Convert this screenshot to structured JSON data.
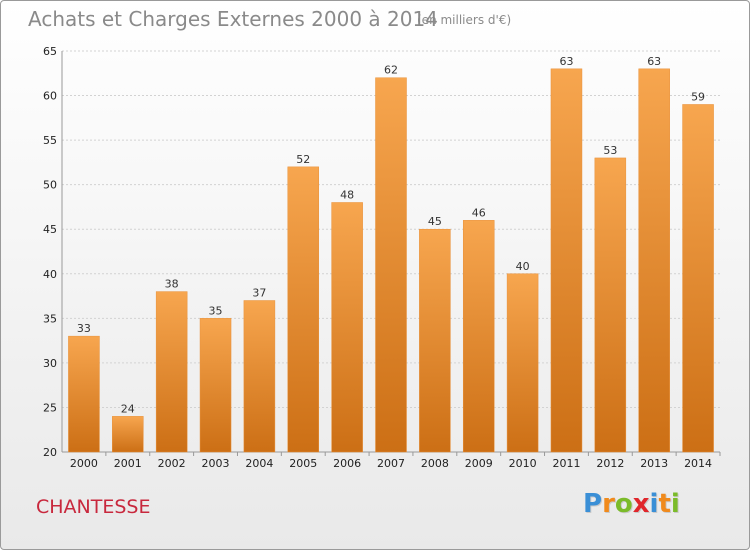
{
  "header": {
    "title": "Achats et Charges Externes 2000 à 2014",
    "subtitle": "(en milliers d'€)"
  },
  "footer": {
    "commune": "CHANTESSE",
    "logo_text": "Proxiti",
    "logo_letters": [
      {
        "char": "P",
        "color": "#3a8fd6"
      },
      {
        "char": "r",
        "color": "#f08a1c"
      },
      {
        "char": "o",
        "color": "#7bbb2a"
      },
      {
        "char": "x",
        "color": "#e0262b"
      },
      {
        "char": "i",
        "color": "#3a8fd6"
      },
      {
        "char": "t",
        "color": "#f08a1c"
      },
      {
        "char": "i",
        "color": "#7bbb2a"
      }
    ]
  },
  "colors": {
    "bar_top": "#f7a64f",
    "bar_bottom": "#cc6f15",
    "title": "#8a8a8a",
    "commune": "#c8283d"
  },
  "chart_data": {
    "type": "bar",
    "title": "Achats et Charges Externes 2000 à 2014",
    "subtitle": "(en milliers d'€)",
    "xlabel": "",
    "ylabel": "",
    "categories": [
      "2000",
      "2001",
      "2002",
      "2003",
      "2004",
      "2005",
      "2006",
      "2007",
      "2008",
      "2009",
      "2010",
      "2011",
      "2012",
      "2013",
      "2014"
    ],
    "values": [
      33,
      24,
      38,
      35,
      37,
      52,
      48,
      62,
      45,
      46,
      40,
      63,
      53,
      63,
      59
    ],
    "ylim": [
      20,
      65
    ],
    "yticks": [
      20,
      25,
      30,
      35,
      40,
      45,
      50,
      55,
      60,
      65
    ],
    "grid": true,
    "data_labels": true
  }
}
